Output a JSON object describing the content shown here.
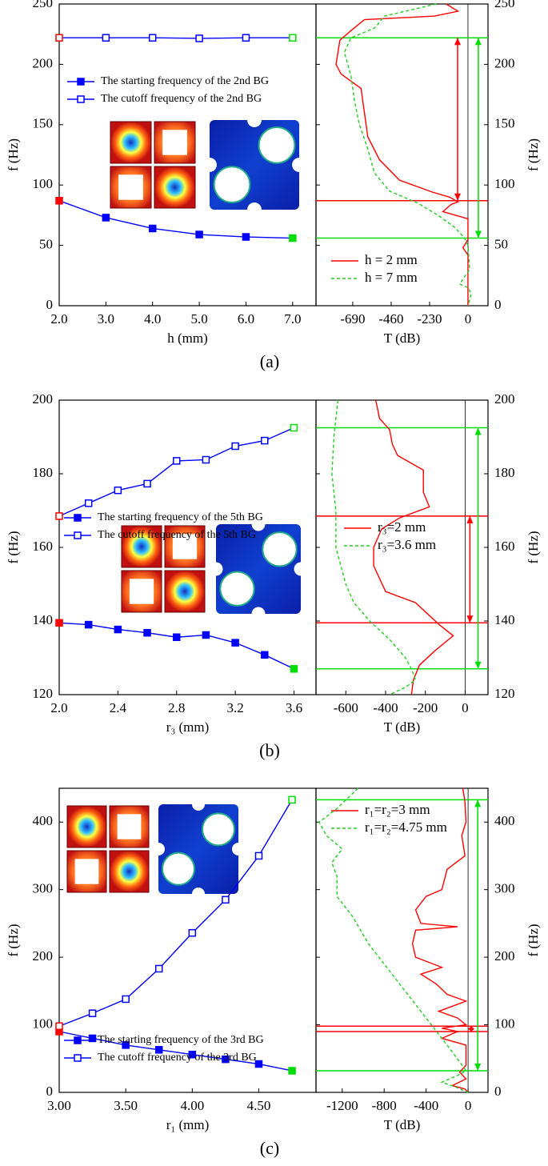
{
  "chart_data": [
    {
      "type": "line",
      "caption": "(a)",
      "xlabel": "h (mm)",
      "ylabel": "f (Hz)",
      "x": [
        2,
        3,
        4,
        5,
        6,
        7
      ],
      "series": [
        {
          "name": "The starting frequency of the 2nd BG",
          "color": "#0000ff",
          "marker": "filled-square",
          "values": [
            87,
            73,
            64,
            59,
            57,
            56
          ]
        },
        {
          "name": "The cutoff frequency of the 2nd BG",
          "color": "#0000ff",
          "marker": "open-square",
          "values": [
            222,
            222,
            222,
            221.5,
            222,
            222
          ]
        }
      ],
      "start_marker_color": "#ff0000",
      "end_marker_color": "#00dd00",
      "xlim": [
        2,
        7.5
      ],
      "xticks": [
        {
          "value": 2,
          "label": "2.0"
        },
        {
          "value": 3,
          "label": "3.0"
        },
        {
          "value": 4,
          "label": "4.0"
        },
        {
          "value": 5,
          "label": "5.0"
        },
        {
          "value": 6,
          "label": "6.0"
        },
        {
          "value": 7,
          "label": "7.0"
        }
      ],
      "ylim": [
        0,
        250
      ],
      "yticks": [
        0,
        50,
        100,
        150,
        200,
        250
      ]
    },
    {
      "type": "line",
      "xlabel": "T (dB)",
      "ylabel": "f (Hz)",
      "yaxis": "right",
      "series": [
        {
          "name": "h = 2 mm",
          "color": "#ff0000",
          "dash": "solid",
          "x": [
            -130,
            -60,
            -200,
            -620,
            -700,
            -767,
            -790,
            -760,
            -640,
            -620,
            -600,
            -530,
            -410,
            -210,
            -110,
            -60,
            -100,
            -150,
            0,
            0,
            -30,
            0,
            0
          ],
          "values": [
            250,
            244,
            240,
            237,
            228,
            220,
            200,
            192,
            180,
            160,
            140,
            121,
            104,
            94,
            90,
            86,
            84,
            78,
            72,
            55,
            48,
            42,
            0
          ]
        },
        {
          "name": "h = 7 mm",
          "color": "#22cc22",
          "dash": "dashed",
          "x": [
            -190,
            -500,
            -560,
            -700,
            -740,
            -700,
            -680,
            -650,
            -600,
            -560,
            -470,
            -300,
            -180,
            -80,
            -20,
            0,
            10,
            -50,
            0,
            20,
            0
          ],
          "values": [
            250,
            240,
            230,
            222,
            210,
            190,
            170,
            150,
            130,
            110,
            95,
            85,
            75,
            65,
            56,
            50,
            30,
            18,
            15,
            10,
            0
          ]
        }
      ],
      "hlines": [
        {
          "value": 222,
          "color": "#00dd00"
        },
        {
          "value": 87,
          "color": "#ff0000"
        },
        {
          "value": 56,
          "color": "#00dd00"
        }
      ],
      "arrows": [
        {
          "x": -62,
          "from": 87,
          "to": 222,
          "color": "#ff0000"
        },
        {
          "x": 62,
          "from": 56,
          "to": 222,
          "color": "#00dd00"
        }
      ],
      "vline": 0,
      "xlim": [
        -910,
        120
      ],
      "xticks": [
        -690,
        -460,
        -230,
        0
      ],
      "ylim": [
        0,
        250
      ],
      "yticks": [
        0,
        50,
        100,
        150,
        200,
        250
      ]
    },
    {
      "type": "line",
      "caption": "(b)",
      "xlabel": "r₃ (mm)",
      "ylabel": "f (Hz)",
      "x": [
        2,
        2.2,
        2.4,
        2.6,
        2.8,
        3,
        3.2,
        3.4,
        3.6
      ],
      "series": [
        {
          "name": "The starting frequency of the 5th BG",
          "color": "#0000ff",
          "marker": "filled-square",
          "values": [
            139.5,
            139,
            137.7,
            136.8,
            135.6,
            136.2,
            134.1,
            130.8,
            127
          ]
        },
        {
          "name": "The cutoff frequency of the 5th BG",
          "color": "#0000ff",
          "marker": "open-square",
          "values": [
            168.5,
            172,
            175.5,
            177.3,
            183.5,
            183.8,
            187.5,
            189,
            192.5
          ]
        }
      ],
      "start_marker_color": "#ff0000",
      "end_marker_color": "#00dd00",
      "xlim": [
        2,
        3.75
      ],
      "xticks": [
        {
          "value": 2,
          "label": "2.0"
        },
        2.4,
        2.8,
        3.2,
        3.6
      ],
      "ylim": [
        120,
        200
      ],
      "yticks": [
        120,
        140,
        160,
        180,
        200
      ]
    },
    {
      "type": "line",
      "xlabel": "T (dB)",
      "ylabel": "f (Hz)",
      "yaxis": "right",
      "series": [
        {
          "name": "r₃=2 mm",
          "color": "#ff0000",
          "dash": "solid",
          "x": [
            -450,
            -430,
            -380,
            -366,
            -340,
            -210,
            -210,
            -180,
            -330,
            -420,
            -460,
            -460,
            -400,
            -250,
            -190,
            -130,
            -60,
            -150,
            -230,
            -260,
            -270
          ],
          "values": [
            200,
            195,
            192,
            188,
            185,
            181,
            175,
            171,
            168,
            165,
            160,
            155,
            148,
            145,
            142,
            139,
            136,
            132,
            128,
            124,
            120
          ]
        },
        {
          "name": "r₃=3.6 mm",
          "color": "#22cc22",
          "dash": "dashed",
          "x": [
            -640,
            -660,
            -670,
            -650,
            -650,
            -600,
            -560,
            -480,
            -380,
            -300,
            -270,
            -250,
            -300,
            -380
          ],
          "values": [
            200,
            190,
            180,
            170,
            160,
            150,
            145,
            140,
            135,
            130,
            127,
            124,
            122,
            120
          ]
        }
      ],
      "hlines": [
        {
          "value": 192.5,
          "color": "#00dd00"
        },
        {
          "value": 168.5,
          "color": "#ff0000"
        },
        {
          "value": 139.5,
          "color": "#ff0000"
        },
        {
          "value": 127,
          "color": "#00dd00"
        }
      ],
      "arrows": [
        {
          "x": 24,
          "from": 139.5,
          "to": 168.5,
          "color": "#ff0000"
        },
        {
          "x": 65,
          "from": 127,
          "to": 192.5,
          "color": "#00dd00"
        }
      ],
      "vline": 0,
      "xlim": [
        -750,
        115
      ],
      "xticks": [
        -600,
        -400,
        -200,
        0
      ],
      "ylim": [
        120,
        200
      ],
      "yticks": [
        120,
        140,
        160,
        180,
        200
      ]
    },
    {
      "type": "line",
      "caption": "(c)",
      "xlabel": "r₁ (mm)",
      "ylabel": "f (Hz)",
      "x": [
        3,
        3.25,
        3.5,
        3.75,
        4,
        4.25,
        4.5,
        4.75
      ],
      "series": [
        {
          "name": "The starting frequency of the 3rd BG",
          "color": "#0000ff",
          "marker": "filled-square",
          "values": [
            90,
            80,
            70,
            63,
            56,
            49,
            42,
            32
          ]
        },
        {
          "name": "The cutoff frequency of the 3rd BG",
          "color": "#0000ff",
          "marker": "open-square",
          "values": [
            98,
            117,
            138,
            183,
            236,
            285,
            350,
            433
          ]
        }
      ],
      "start_marker_color": "#ff0000",
      "end_marker_color": "#00dd00",
      "xlim": [
        3,
        4.93
      ],
      "xticks": [
        {
          "value": 3,
          "label": "3.00"
        },
        {
          "value": 3.5,
          "label": "3.50"
        },
        {
          "value": 4,
          "label": "4.00"
        },
        {
          "value": 4.5,
          "label": "4.50"
        }
      ],
      "ylim": [
        0,
        450
      ],
      "yticks": [
        0,
        100,
        200,
        300,
        400
      ]
    },
    {
      "type": "line",
      "xlabel": "T (dB)",
      "ylabel": "f (Hz)",
      "yaxis": "right",
      "series": [
        {
          "name": "r₁=r₂=3 mm",
          "color": "#ff0000",
          "dash": "solid",
          "x": [
            -50,
            -30,
            -20,
            -60,
            -30,
            -200,
            -250,
            -400,
            -500,
            -450,
            -100,
            -500,
            -530,
            -500,
            -250,
            -450,
            -300,
            -200,
            -20,
            -280,
            -100,
            -20,
            -250,
            -100,
            -250,
            -20,
            -20,
            -80,
            -20,
            -150,
            -30,
            0
          ],
          "values": [
            450,
            430,
            400,
            380,
            350,
            330,
            300,
            290,
            270,
            250,
            245,
            240,
            220,
            200,
            185,
            175,
            160,
            145,
            135,
            120,
            110,
            100,
            95,
            90,
            80,
            70,
            40,
            30,
            20,
            10,
            5,
            0
          ]
        },
        {
          "name": "r₁=r₂=4.75 mm",
          "color": "#22cc22",
          "dash": "dashed",
          "x": [
            -1050,
            -1250,
            -1420,
            -1350,
            -1200,
            -1300,
            -1250,
            -1250,
            -1100,
            -950,
            -750,
            -550,
            -350,
            -200,
            -80,
            -20,
            -100,
            -250,
            -120,
            0
          ],
          "values": [
            450,
            420,
            400,
            380,
            360,
            340,
            320,
            290,
            260,
            220,
            180,
            140,
            100,
            70,
            45,
            32,
            25,
            15,
            8,
            0
          ]
        }
      ],
      "hlines": [
        {
          "value": 433,
          "color": "#00dd00"
        },
        {
          "value": 98,
          "color": "#ff0000"
        },
        {
          "value": 90,
          "color": "#ff0000"
        },
        {
          "value": 32,
          "color": "#00dd00"
        }
      ],
      "arrows": [
        {
          "x": 30,
          "from": 90,
          "to": 98,
          "color": "#ff0000"
        },
        {
          "x": 92,
          "from": 32,
          "to": 433,
          "color": "#00dd00"
        }
      ],
      "vline": 0,
      "xlim": [
        -1450,
        190
      ],
      "xticks": [
        -1200,
        -800,
        -400,
        0
      ],
      "ylim": [
        0,
        450
      ],
      "yticks": [
        0,
        100,
        200,
        300,
        400
      ]
    }
  ]
}
